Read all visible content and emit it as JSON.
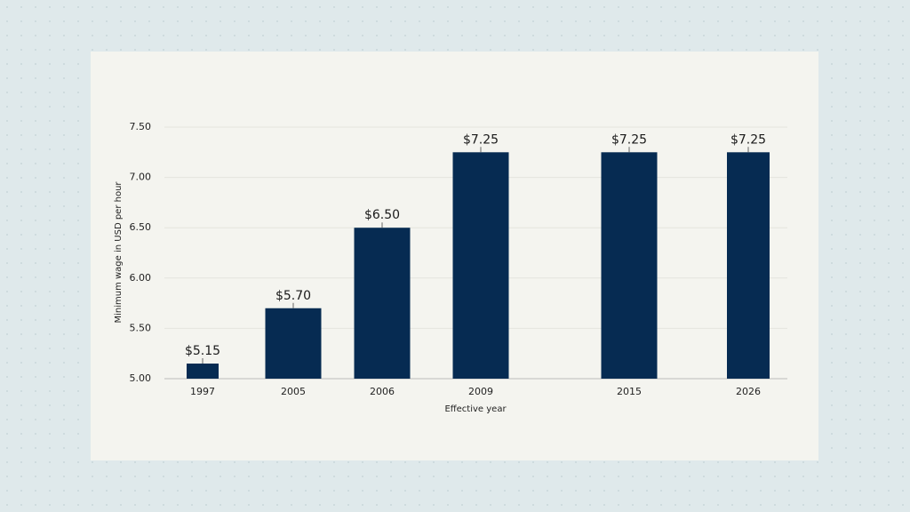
{
  "chart_data": {
    "type": "bar",
    "categories": [
      "1997",
      "2005",
      "2006",
      "2009",
      "2015",
      "2026"
    ],
    "values": [
      5.15,
      5.7,
      6.5,
      7.25,
      7.25,
      7.25
    ],
    "value_labels": [
      "$5.15",
      "$5.70",
      "$6.50",
      "$7.25",
      "$7.25",
      "$7.25"
    ],
    "color": "#062b52",
    "x_label": "Effective year",
    "y_label": "Minimum wage in USD per hour",
    "ylim": [
      5,
      7.5
    ],
    "yticks": [
      {
        "value": 5,
        "label": "5.00"
      },
      {
        "value": 5.5,
        "label": "5.50"
      },
      {
        "value": 6,
        "label": "6.00"
      },
      {
        "value": 6.5,
        "label": "6.50"
      },
      {
        "value": 7,
        "label": "7.00"
      },
      {
        "value": 7.5,
        "label": "7.50"
      }
    ],
    "grid": true
  }
}
